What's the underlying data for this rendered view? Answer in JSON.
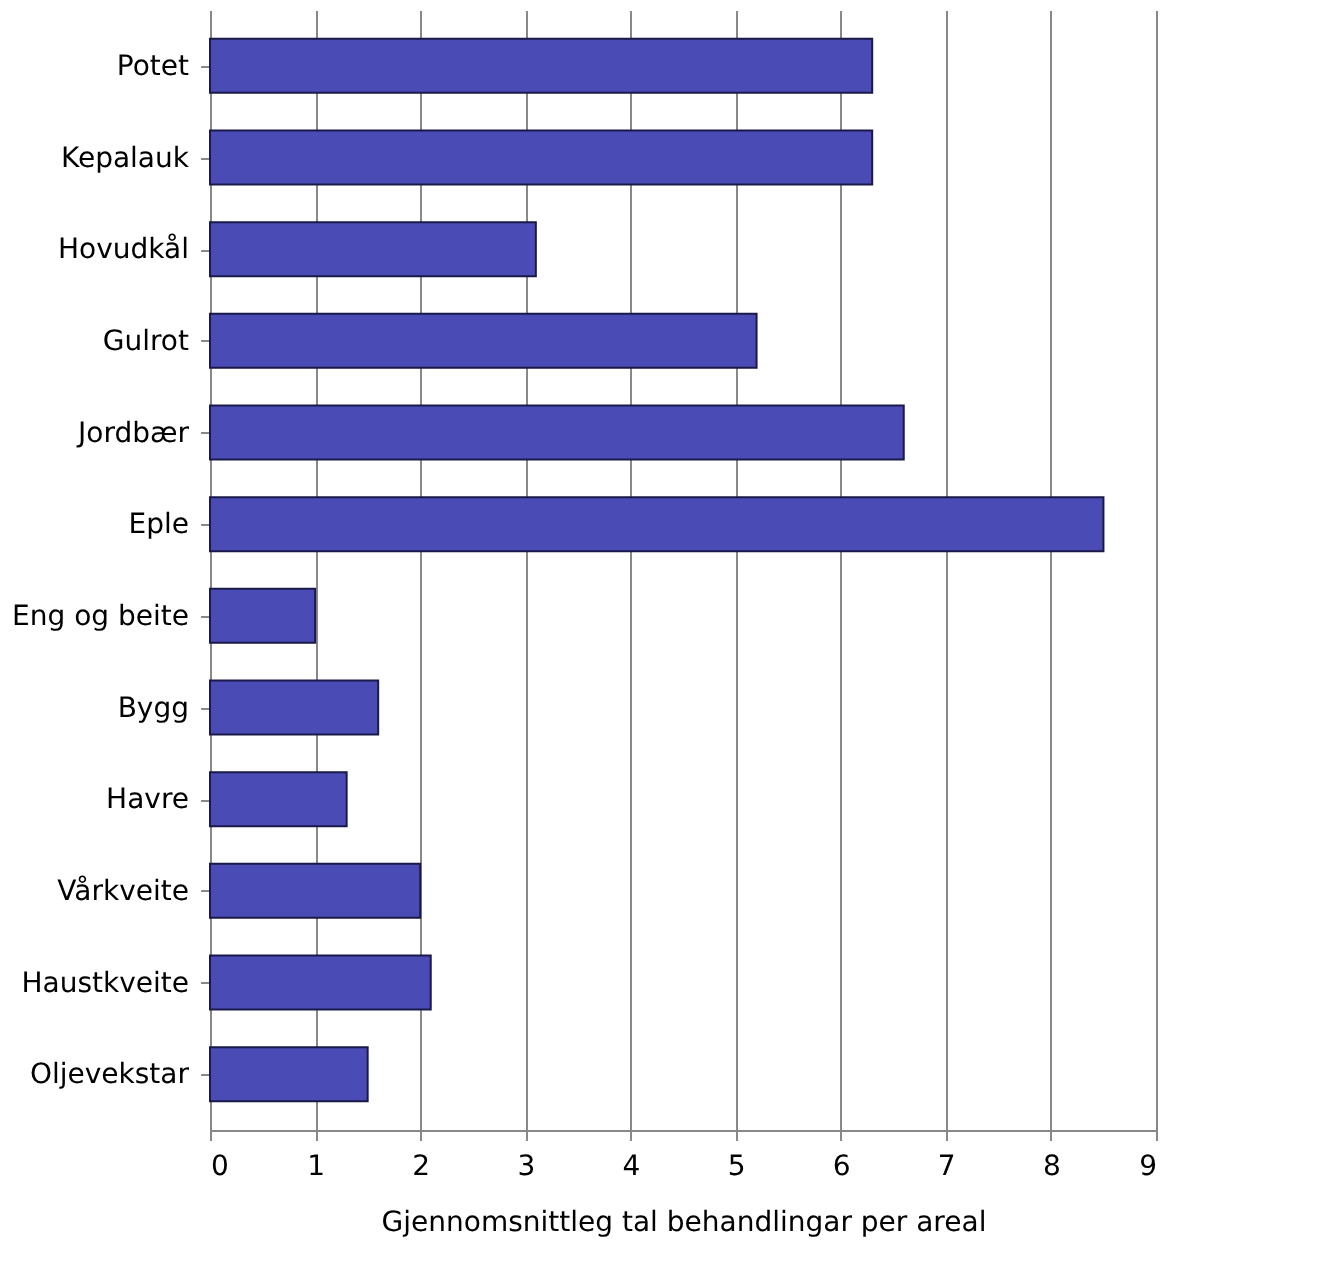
{
  "chart_data": {
    "type": "bar",
    "orientation": "horizontal",
    "categories": [
      "Potet",
      "Kepalauk",
      "Hovudkål",
      "Gulrot",
      "Jordbær",
      "Eple",
      "Eng og beite",
      "Bygg",
      "Havre",
      "Vårkveite",
      "Haustkveite",
      "Oljevekstar"
    ],
    "values": [
      6.3,
      6.3,
      3.1,
      5.2,
      6.6,
      8.5,
      1.0,
      1.6,
      1.3,
      2.0,
      2.1,
      1.5
    ],
    "color": "#4b4bb5",
    "xlabel": "Gjennomsnittleg tal behandlingar per areal",
    "xlim": [
      0,
      9
    ],
    "xticks": [
      0,
      1,
      2,
      3,
      4,
      5,
      6,
      7,
      8,
      9
    ],
    "grid": "x"
  }
}
